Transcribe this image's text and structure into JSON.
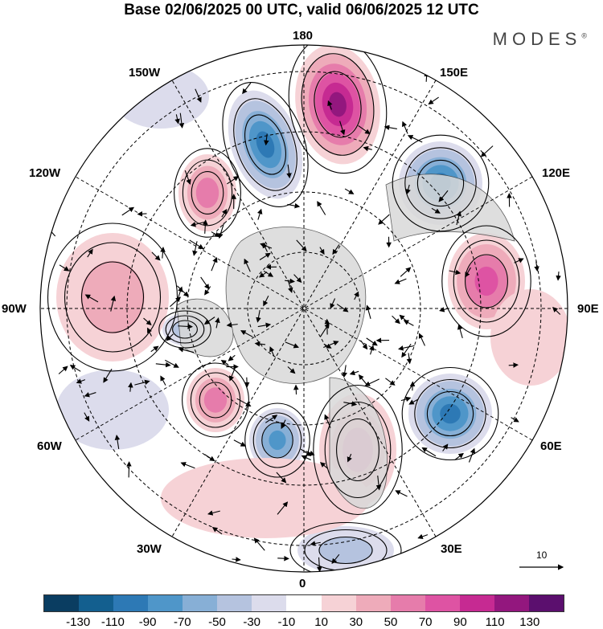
{
  "header": {
    "title": "Base 02/06/2025 00 UTC, valid 06/06/2025 12 UTC",
    "brand": "MODES",
    "brand_mark": "®"
  },
  "map": {
    "projection": "north-polar-stereographic",
    "longitude_labels": {
      "n180": "180",
      "e150": "150E",
      "e120": "120E",
      "e90": "90E",
      "e60": "60E",
      "e30": "30E",
      "s0": "0",
      "w30": "30W",
      "w60": "60W",
      "w90": "90W",
      "w120": "120W",
      "w150": "150W"
    },
    "reference_vector": "10",
    "anomaly_colors": {
      "negative": "#2d79b5",
      "positive": "#d2449f",
      "neutral": "#ffffff",
      "land": "#d9d9d9"
    }
  },
  "colorbar": {
    "colors": [
      "#0a3d61",
      "#135f8f",
      "#2d79b5",
      "#4f96c9",
      "#87afd6",
      "#b5c3df",
      "#dcdcec",
      "#ffffff",
      "#f6d2d6",
      "#eeabba",
      "#e67cab",
      "#de53a3",
      "#c62a92",
      "#93177e",
      "#5b0f6e"
    ],
    "labels": [
      "-130",
      "-110",
      "-90",
      "-70",
      "-50",
      "-30",
      "-10",
      "10",
      "30",
      "50",
      "70",
      "90",
      "110",
      "130"
    ]
  }
}
